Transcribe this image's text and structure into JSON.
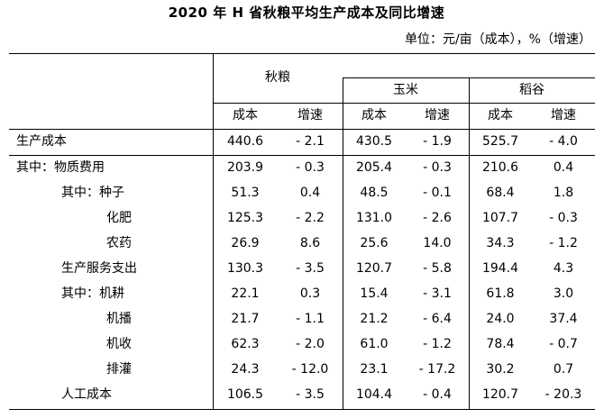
{
  "title": "2020 年 H 省秋粮平均生产成本及同比增速",
  "unit_note": "单位：元/亩（成本），%（增速）",
  "header": {
    "group_total": "秋粮",
    "group_corn": "玉米",
    "group_rice": "稻谷",
    "cost": "成本",
    "growth": "增速"
  },
  "rows": [
    {
      "label": "生产成本",
      "values": [
        "440.6",
        "- 2.1",
        "430.5",
        "- 1.9",
        "525.7",
        "- 4.0"
      ]
    },
    {
      "label": "其中：物质费用",
      "values": [
        "203.9",
        "- 0.3",
        "205.4",
        "- 0.3",
        "210.6",
        "0.4"
      ]
    },
    {
      "label": "其中：种子",
      "values": [
        "51.3",
        "0.4",
        "48.5",
        "- 0.1",
        "68.4",
        "1.8"
      ]
    },
    {
      "label": "化肥",
      "values": [
        "125.3",
        "- 2.2",
        "131.0",
        "- 2.6",
        "107.7",
        "- 0.3"
      ]
    },
    {
      "label": "农药",
      "values": [
        "26.9",
        "8.6",
        "25.6",
        "14.0",
        "34.3",
        "- 1.2"
      ]
    },
    {
      "label": "生产服务支出",
      "values": [
        "130.3",
        "- 3.5",
        "120.7",
        "- 5.8",
        "194.4",
        "4.3"
      ]
    },
    {
      "label": "其中：机耕",
      "values": [
        "22.1",
        "0.3",
        "15.4",
        "- 3.1",
        "61.8",
        "3.0"
      ]
    },
    {
      "label": "机播",
      "values": [
        "21.7",
        "- 1.1",
        "21.2",
        "- 6.4",
        "24.0",
        "37.4"
      ]
    },
    {
      "label": "机收",
      "values": [
        "62.3",
        "- 2.0",
        "61.0",
        "- 1.2",
        "78.4",
        "- 0.7"
      ]
    },
    {
      "label": "排灌",
      "values": [
        "24.3",
        "- 12.0",
        "23.1",
        "- 17.2",
        "30.2",
        "0.7"
      ]
    },
    {
      "label": "人工成本",
      "values": [
        "106.5",
        "- 3.5",
        "104.4",
        "- 0.4",
        "120.7",
        "- 20.3"
      ]
    }
  ]
}
